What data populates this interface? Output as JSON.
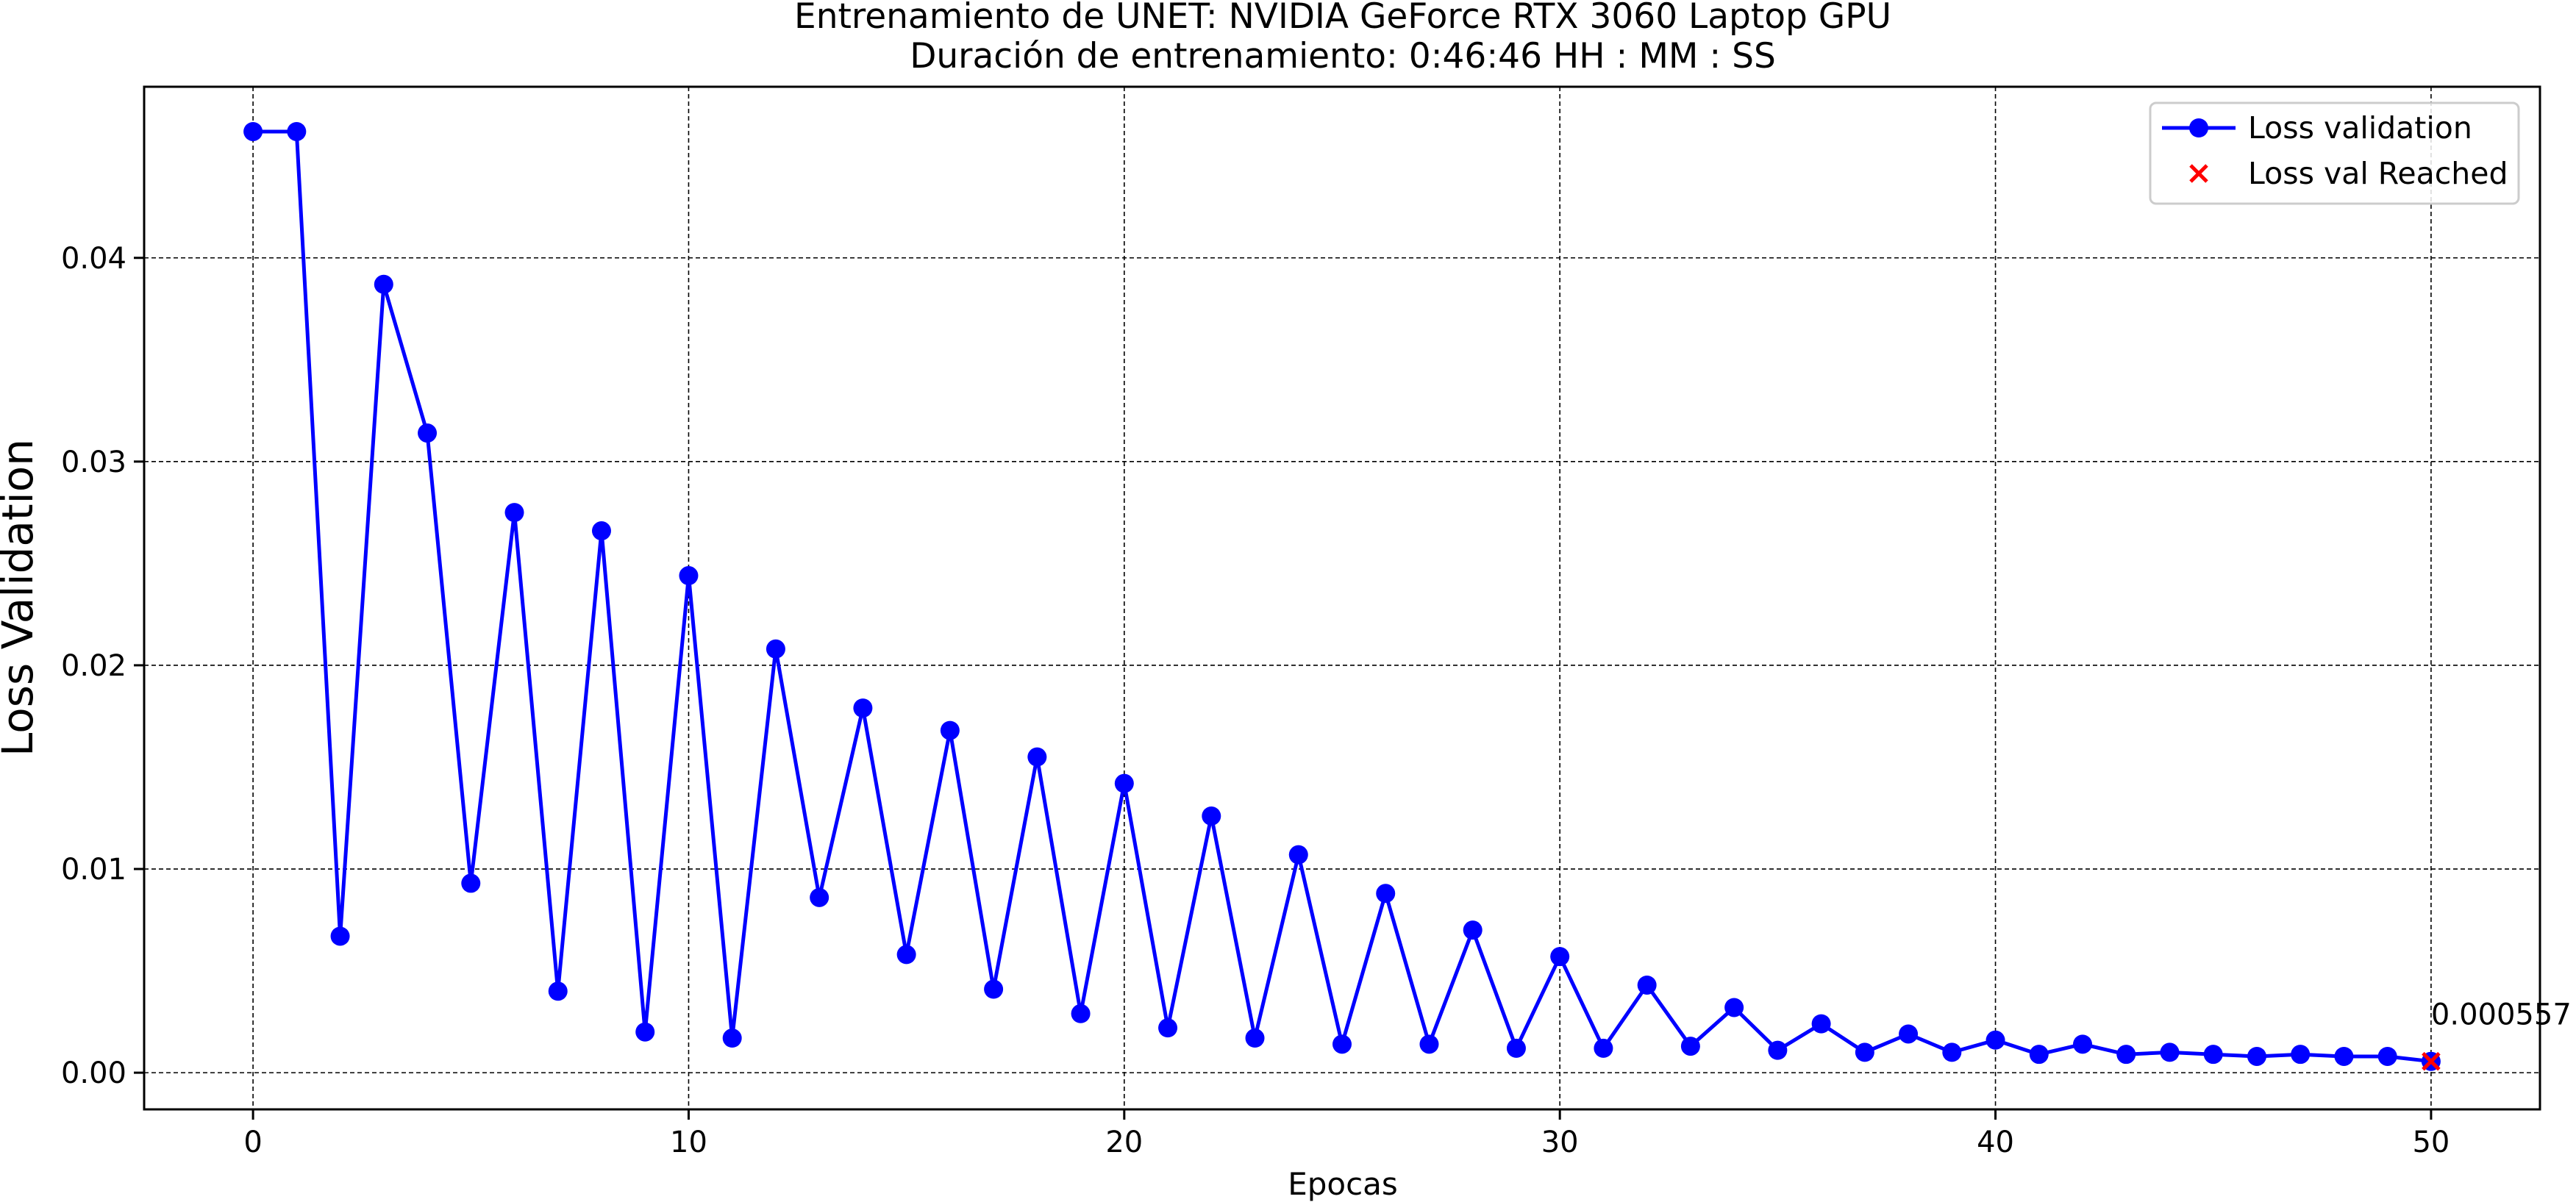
{
  "chart_data": {
    "type": "line",
    "title": "Entrenamiento de UNET: NVIDIA GeForce RTX 3060 Laptop GPU",
    "subtitle": "Duración de entrenamiento: 0:46:46 HH : MM : SS",
    "xlabel": "Epocas",
    "ylabel": "Loss Validation",
    "xlim": [
      -2.5,
      52.5
    ],
    "ylim": [
      -0.0018,
      0.0484
    ],
    "xticks": [
      0,
      10,
      20,
      30,
      40,
      50
    ],
    "xtick_labels": [
      "0",
      "10",
      "20",
      "30",
      "40",
      "50"
    ],
    "yticks": [
      0.0,
      0.01,
      0.02,
      0.03,
      0.04
    ],
    "ytick_labels": [
      "0.00",
      "0.01",
      "0.02",
      "0.03",
      "0.04"
    ],
    "grid": true,
    "grid_style": "dashed",
    "legend_position": "top-right",
    "series": [
      {
        "name": "Loss validation",
        "color": "#0000ff",
        "marker": "circle",
        "x": [
          0,
          1,
          2,
          3,
          4,
          5,
          6,
          7,
          8,
          9,
          10,
          11,
          12,
          13,
          14,
          15,
          16,
          17,
          18,
          19,
          20,
          21,
          22,
          23,
          24,
          25,
          26,
          27,
          28,
          29,
          30,
          31,
          32,
          33,
          34,
          35,
          36,
          37,
          38,
          39,
          40,
          41,
          42,
          43,
          44,
          45,
          46,
          47,
          48,
          49,
          50
        ],
        "values": [
          0.0462,
          0.0462,
          0.0067,
          0.0387,
          0.0314,
          0.0093,
          0.0275,
          0.004,
          0.0266,
          0.002,
          0.0244,
          0.0017,
          0.0208,
          0.0086,
          0.0179,
          0.0058,
          0.0168,
          0.0041,
          0.0155,
          0.0029,
          0.0142,
          0.0022,
          0.0126,
          0.0017,
          0.0107,
          0.0014,
          0.0088,
          0.0014,
          0.007,
          0.0012,
          0.0057,
          0.0012,
          0.0043,
          0.0013,
          0.0032,
          0.0011,
          0.0024,
          0.001,
          0.0019,
          0.001,
          0.0016,
          0.0009,
          0.0014,
          0.0009,
          0.001,
          0.0009,
          0.0008,
          0.0009,
          0.0008,
          0.0008,
          0.000557
        ]
      },
      {
        "name": "Loss val Reached",
        "color": "#ff0000",
        "marker": "x",
        "x": [
          50
        ],
        "values": [
          0.000557
        ]
      }
    ],
    "annotations": [
      {
        "text": "0.000557",
        "x": 50,
        "y": 0.000557
      }
    ]
  }
}
